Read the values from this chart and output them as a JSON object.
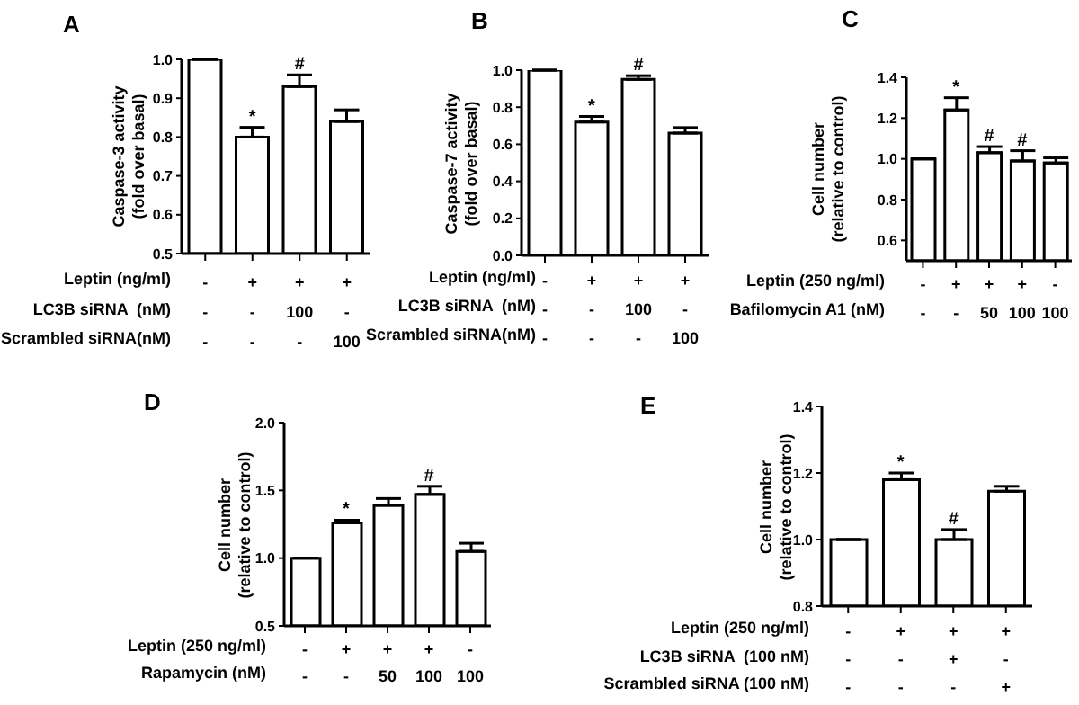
{
  "chart_data": [
    {
      "type": "bar",
      "title": "A",
      "ylabel": "Caspase-3 activity\n(fold over basal)",
      "categories": [
        "-\n-\n-",
        "+\n-\n-",
        "+\n100\n-",
        "+\n-\n100"
      ],
      "values": [
        1.0,
        0.8,
        0.93,
        0.84
      ],
      "errors": [
        null,
        [
          0.8,
          0.825
        ],
        [
          0.93,
          0.96
        ],
        [
          0.84,
          0.87
        ]
      ],
      "color": "#ffffff",
      "ylim": [
        0.5,
        1.0
      ],
      "yticks": [
        0.5,
        0.6,
        0.7,
        0.8,
        0.9,
        {
          "value": 1,
          "label": "1.0"
        }
      ],
      "grid": false,
      "legend": false,
      "annotations": [
        "Leptin (ng/ml)",
        "LC3B siRNA  (nM)",
        "Scrambled siRNA(nM)",
        {
          "text": "*",
          "x": "+\n-\n-",
          "y": 0.825
        },
        {
          "text": "#",
          "x": "+\n100\n-",
          "y": 0.96
        }
      ]
    },
    {
      "type": "bar",
      "title": "B",
      "ylabel": "Caspase-7 activity\n(fold over basal)",
      "categories": [
        "-\n-\n-",
        "+\n-\n-",
        "+\n100\n-",
        "+\n-\n100"
      ],
      "values": [
        1.0,
        0.72,
        0.95,
        0.66
      ],
      "errors": [
        null,
        [
          0.72,
          0.75
        ],
        [
          0.95,
          0.97
        ],
        [
          0.66,
          0.69
        ]
      ],
      "color": "#ffffff",
      "ylim": [
        0,
        1.0
      ],
      "yticks": [
        {
          "value": 0,
          "label": "0.0"
        },
        0.2,
        0.4,
        0.6,
        0.8,
        {
          "value": 1,
          "label": "1.0"
        }
      ],
      "grid": false,
      "legend": false,
      "annotations": [
        "Leptin (ng/ml)",
        "LC3B siRNA  (nM)",
        "Scrambled siRNA(nM)",
        {
          "text": "*",
          "x": "+\n-\n-",
          "y": 0.75
        },
        {
          "text": "#",
          "x": "+\n100\n-",
          "y": 0.97
        }
      ]
    },
    {
      "type": "bar",
      "title": "C",
      "ylabel": "Cell number\n(relative to control)",
      "categories": [
        "-\n-",
        "+\n-",
        "+\n50",
        "+\n100",
        "-\n100"
      ],
      "values": [
        1.0,
        1.24,
        1.03,
        0.99,
        0.98
      ],
      "errors": [
        null,
        [
          1.24,
          1.3
        ],
        [
          1.03,
          1.06
        ],
        [
          0.99,
          1.04
        ],
        [
          0.98,
          1.005
        ]
      ],
      "color": "#ffffff",
      "ylim": [
        0.5,
        1.4
      ],
      "yticks": [
        0.6,
        0.8,
        {
          "value": 1,
          "label": "1.0"
        },
        1.2,
        1.4
      ],
      "grid": false,
      "legend": false,
      "annotations": [
        "Leptin (250 ng/ml)",
        "Bafilomycin A1 (nM)",
        {
          "text": "*",
          "x": "+\n-",
          "y": 1.3
        },
        {
          "text": "#",
          "x": "+\n50",
          "y": 1.06
        },
        {
          "text": "#",
          "x": "+\n100",
          "y": 1.04
        }
      ]
    },
    {
      "type": "bar",
      "title": "D",
      "ylabel": "Cell number\n(relative to control)",
      "categories": [
        "-\n-",
        "+\n-",
        "+\n50",
        "+\n100",
        "-\n100"
      ],
      "values": [
        1.0,
        1.26,
        1.39,
        1.47,
        1.05
      ],
      "errors": [
        null,
        [
          1.26,
          1.28
        ],
        [
          1.39,
          1.44
        ],
        [
          1.47,
          1.53
        ],
        [
          1.05,
          1.11
        ]
      ],
      "color": "#ffffff",
      "ylim": [
        0.5,
        2.0
      ],
      "yticks": [
        0.5,
        {
          "value": 1,
          "label": "1.0"
        },
        1.5,
        {
          "value": 2,
          "label": "2.0"
        }
      ],
      "grid": false,
      "legend": false,
      "annotations": [
        "Leptin (250 ng/ml)",
        "Rapamycin (nM)",
        {
          "text": "*",
          "x": "+\n-",
          "y": 1.28
        },
        {
          "text": "#",
          "x": "+\n100",
          "y": 1.53
        }
      ]
    },
    {
      "type": "bar",
      "title": "E",
      "ylabel": "Cell number\n(relative to control)",
      "categories": [
        "-\n-\n-",
        "+\n-\n-",
        "+\n+\n-",
        "+\n-\n+"
      ],
      "values": [
        1.0,
        1.18,
        1.0,
        1.145
      ],
      "errors": [
        null,
        [
          1.18,
          1.2
        ],
        [
          1.0,
          1.03
        ],
        [
          1.145,
          1.16
        ]
      ],
      "color": "#ffffff",
      "ylim": [
        0.8,
        1.4
      ],
      "yticks": [
        0.8,
        {
          "value": 1,
          "label": "1.0"
        },
        1.2,
        1.4
      ],
      "grid": false,
      "legend": false,
      "annotations": [
        "Leptin (250 ng/ml)",
        "LC3B siRNA  (100 nM)",
        "Scrambled siRNA (100 nM)",
        {
          "text": "*",
          "x": "+\n-\n-",
          "y": 1.2
        },
        {
          "text": "#",
          "x": "+\n+\n-",
          "y": 1.03
        }
      ]
    }
  ]
}
